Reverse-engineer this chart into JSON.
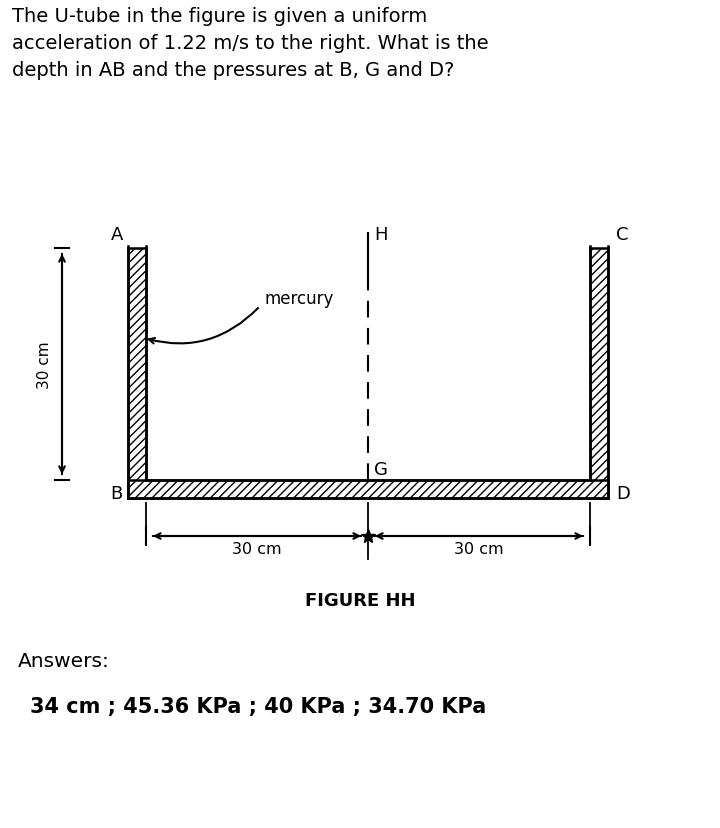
{
  "title_line1": "The U-tube in the figure is given a uniform",
  "title_line2": "acceleration of 1.22 m/s to the right. What is the",
  "title_line3": "depth in AB and the pressures at B, G and D?",
  "figure_label": "FIGURE HH",
  "answers_label": "Answers:",
  "answers_text": "34 cm ; 45.36 KPa ; 40 KPa ; 34.70 KPa",
  "label_A": "A",
  "label_B": "B",
  "label_C": "C",
  "label_D": "D",
  "label_G": "G",
  "label_H": "H",
  "label_mercury": "mercury",
  "dim_30cm_left": "30 cm",
  "dim_30cm_right": "30 cm",
  "dim_30cm_height": "30 cm",
  "bg_color": "#ffffff",
  "line_color": "#000000",
  "hatch_pattern": "////"
}
